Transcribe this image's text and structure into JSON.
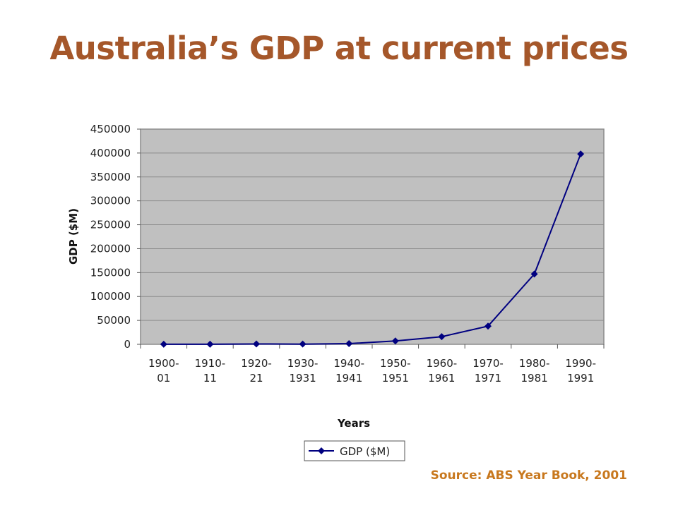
{
  "title": "Australia’s GDP at current prices",
  "source": "Source: ABS Year Book, 2001",
  "colors": {
    "title": "#a5572a",
    "source": "#c8781e",
    "plot_bg": "#c0c0c0",
    "series": "#000080",
    "grid": "#8c8c8c"
  },
  "chart_data": {
    "type": "line",
    "categories": [
      [
        "1900-",
        "01"
      ],
      [
        "1910-",
        "11"
      ],
      [
        "1920-",
        "21"
      ],
      [
        "1930-",
        "1931"
      ],
      [
        "1940-",
        "1941"
      ],
      [
        "1950-",
        "1951"
      ],
      [
        "1960-",
        "1961"
      ],
      [
        "1970-",
        "1971"
      ],
      [
        "1980-",
        "1981"
      ],
      [
        "1990-",
        "1991"
      ]
    ],
    "series": [
      {
        "name": "GDP ($M)",
        "values": [
          100,
          150,
          700,
          500,
          1500,
          7000,
          16000,
          38000,
          147000,
          398000
        ],
        "marker": "diamond"
      }
    ],
    "xlabel": "Years",
    "ylabel": "GDP ($M)",
    "ylim": [
      0,
      450000
    ],
    "yticks": [
      0,
      50000,
      100000,
      150000,
      200000,
      250000,
      300000,
      350000,
      400000,
      450000
    ],
    "grid": "horizontal",
    "legend_position": "bottom"
  }
}
